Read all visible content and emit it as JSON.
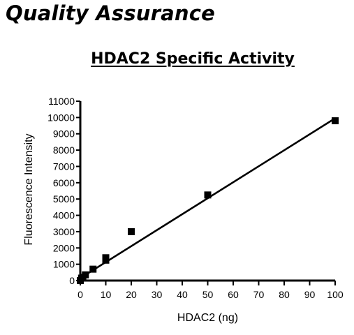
{
  "page": {
    "heading": "Quality Assurance"
  },
  "chart_data": {
    "type": "scatter",
    "title": "HDAC2 Specific Activity",
    "xlabel": "HDAC2 (ng)",
    "ylabel": "Fluorescence Intensity",
    "xlim": [
      0,
      100
    ],
    "ylim": [
      0,
      11000
    ],
    "xticks": [
      0,
      10,
      20,
      30,
      40,
      50,
      60,
      70,
      80,
      90,
      100
    ],
    "yticks": [
      0,
      1000,
      2000,
      3000,
      4000,
      5000,
      6000,
      7000,
      8000,
      9000,
      10000,
      11000
    ],
    "points": [
      {
        "x": 0,
        "y": 0
      },
      {
        "x": 0.5,
        "y": 150
      },
      {
        "x": 1,
        "y": 200
      },
      {
        "x": 2,
        "y": 350
      },
      {
        "x": 5,
        "y": 700
      },
      {
        "x": 10,
        "y": 1250
      },
      {
        "x": 10,
        "y": 1400
      },
      {
        "x": 20,
        "y": 3000
      },
      {
        "x": 50,
        "y": 5250
      },
      {
        "x": 100,
        "y": 9800
      }
    ],
    "fit_line": {
      "x": [
        0,
        100
      ],
      "y": [
        150,
        9950
      ]
    },
    "grid": false,
    "marker": "square"
  }
}
